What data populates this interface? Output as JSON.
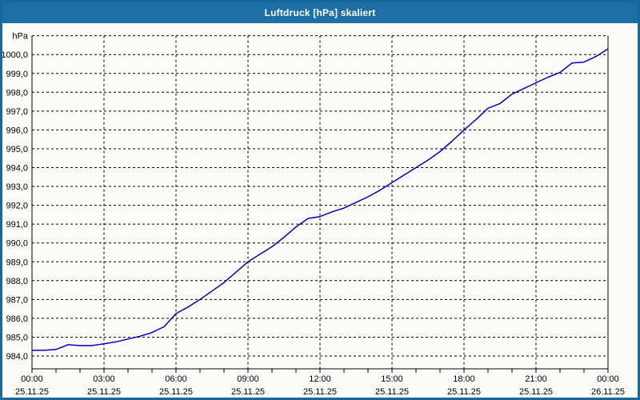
{
  "window": {
    "title": "Luftdruck [hPa] skaliert"
  },
  "colors": {
    "titlebar_bg": "#1d6fa5",
    "frame_border": "#1a679b",
    "plot_bg": "#fdfdf8",
    "grid": "#000000",
    "axis": "#000000",
    "tick_text": "#000000",
    "line": "#0000c0",
    "title_text": "#ffffff"
  },
  "chart_data": {
    "type": "line",
    "title": "Luftdruck [hPa] skaliert",
    "series_name": "Luftdruck",
    "unit": "hPa",
    "grid": "dashed",
    "legend": "none",
    "x_unit": "hours",
    "xlim": [
      0,
      24
    ],
    "ylim": [
      984,
      1001
    ],
    "y_axis": {
      "unit_top_label": "hPa",
      "tick_step": 1,
      "tick_labels_bottom_to_top": [
        "984,0",
        "985,0",
        "986,0",
        "987,0",
        "988,0",
        "989,0",
        "990,0",
        "991,0",
        "992,0",
        "993,0",
        "994,0",
        "995,0",
        "996,0",
        "997,0",
        "998,0",
        "999,0",
        "1000,0"
      ]
    },
    "x_axis": {
      "major_tick_hours": 3,
      "minor_tick_hours": 1,
      "ticks": [
        {
          "time": "00:00",
          "date": "25.11.25"
        },
        {
          "time": "03:00",
          "date": "25.11.25"
        },
        {
          "time": "06:00",
          "date": "25.11.25"
        },
        {
          "time": "09:00",
          "date": "25.11.25"
        },
        {
          "time": "12:00",
          "date": "25.11.25"
        },
        {
          "time": "15:00",
          "date": "25.11.25"
        },
        {
          "time": "18:00",
          "date": "25.11.25"
        },
        {
          "time": "21:00",
          "date": "25.11.25"
        },
        {
          "time": "00:00",
          "date": "26.11.25"
        }
      ]
    },
    "x_hours": [
      0,
      0.5,
      1,
      1.5,
      2,
      2.5,
      3,
      3.5,
      4,
      4.5,
      5,
      5.5,
      6,
      6.5,
      7,
      7.5,
      8,
      8.5,
      9,
      9.5,
      10,
      10.5,
      11,
      11.5,
      12,
      12.5,
      13,
      13.5,
      14,
      14.5,
      15,
      15.5,
      16,
      16.5,
      17,
      17.5,
      18,
      18.5,
      19,
      19.5,
      20,
      20.5,
      21,
      21.5,
      22,
      22.5,
      23,
      23.5,
      24
    ],
    "values": [
      984.3,
      984.3,
      984.35,
      984.6,
      984.55,
      984.55,
      984.65,
      984.75,
      984.9,
      985.05,
      985.25,
      985.55,
      986.25,
      986.6,
      987.0,
      987.45,
      987.9,
      988.45,
      989.0,
      989.4,
      989.8,
      990.3,
      990.85,
      991.3,
      991.4,
      991.65,
      991.85,
      992.15,
      992.45,
      992.8,
      993.2,
      993.6,
      994.0,
      994.4,
      994.85,
      995.4,
      996.0,
      996.55,
      997.15,
      997.4,
      997.9,
      998.2,
      998.5,
      998.8,
      999.05,
      999.55,
      999.6,
      999.9,
      1000.3
    ]
  }
}
